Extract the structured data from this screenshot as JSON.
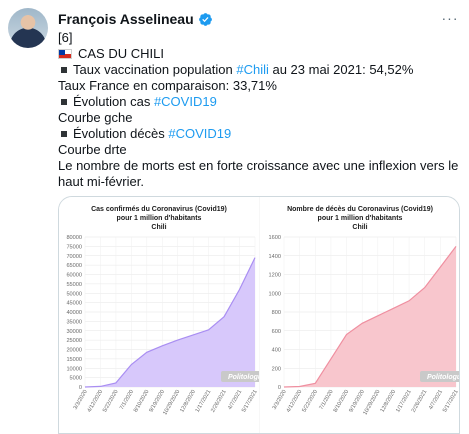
{
  "tweet": {
    "author": "François Asselineau",
    "more_label": "···",
    "lines": {
      "l1": "[6]",
      "l2": "CAS DU CHILI",
      "l3a": "Taux vaccination population ",
      "l3tag": "#Chili",
      "l3b": " au 23 mai 2021: 54,52%",
      "l4": "Taux France en comparaison: 33,71%",
      "l5a": "Évolution cas ",
      "l5tag": "#COVID19",
      "l6": "Courbe gche",
      "l7a": "Évolution décès ",
      "l7tag": "#COVID19",
      "l8": "Courbe drte",
      "l9": "Le nombre de morts est en forte croissance avec une inflexion vers le haut mi-février."
    }
  },
  "icons": {
    "verified": "verified-badge-icon",
    "flag": "chile-flag-icon",
    "bullet": "black-square-icon",
    "more": "more-options-icon"
  },
  "colors": {
    "link": "#1d9bf0",
    "cases_fill": "#d7c8fb",
    "cases_line": "#a98ef2",
    "deaths_fill": "#f8c6cd",
    "deaths_line": "#ef8fa0",
    "watermark_bg": "#c9c9c9"
  },
  "chart_data": [
    {
      "type": "area",
      "title_lines": [
        "Cas confirmés du Coronavirus (Covid19)",
        "pour 1 million d'habitants",
        "Chili"
      ],
      "watermark": "Politologue",
      "ylim": [
        0,
        80000
      ],
      "y_ticks": [
        0,
        5000,
        10000,
        15000,
        20000,
        25000,
        30000,
        35000,
        40000,
        45000,
        50000,
        55000,
        60000,
        65000,
        70000,
        75000,
        80000
      ],
      "x_ticks": [
        "3/3/2020",
        "4/12/2020",
        "5/22/2020",
        "7/1/2020",
        "8/10/2020",
        "9/19/2020",
        "10/29/2020",
        "12/8/2020",
        "1/17/2021",
        "2/26/2021",
        "4/7/2021",
        "5/17/2021"
      ],
      "values": [
        0,
        300,
        2200,
        12000,
        18500,
        22000,
        25000,
        27800,
        30500,
        37500,
        52000,
        69000
      ],
      "grid": true
    },
    {
      "type": "area",
      "title_lines": [
        "Nombre de décès du Coronavirus (Covid19)",
        "pour 1 million d'habitants",
        "Chili"
      ],
      "watermark": "Politologue",
      "ylim": [
        0,
        1600
      ],
      "y_ticks": [
        0,
        200,
        400,
        600,
        800,
        1000,
        1200,
        1400,
        1600
      ],
      "x_ticks": [
        "3/3/2020",
        "4/12/2020",
        "5/22/2020",
        "7/1/2020",
        "8/10/2020",
        "9/19/2020",
        "10/29/2020",
        "12/8/2020",
        "1/17/2021",
        "2/26/2021",
        "4/7/2021",
        "5/17/2021"
      ],
      "values": [
        0,
        5,
        40,
        300,
        560,
        680,
        760,
        840,
        920,
        1060,
        1280,
        1500
      ],
      "grid": true
    }
  ]
}
